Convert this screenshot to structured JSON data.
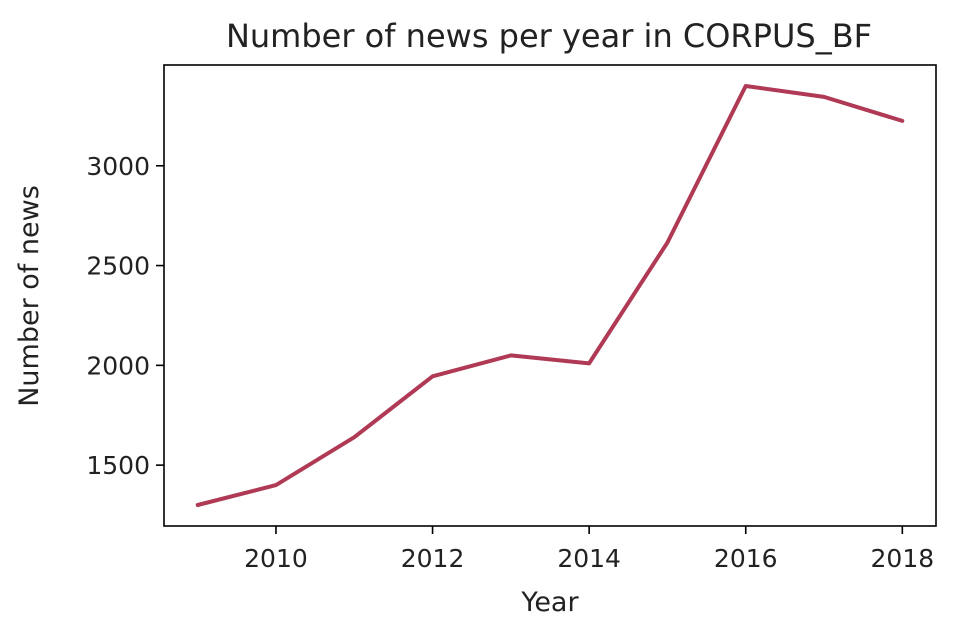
{
  "chart_data": {
    "type": "line",
    "title": "Number of news per year in CORPUS_BF",
    "xlabel": "Year",
    "ylabel": "Number of news",
    "x": [
      2009,
      2010,
      2011,
      2012,
      2013,
      2014,
      2015,
      2016,
      2017,
      2018
    ],
    "series": [
      {
        "values": [
          1300,
          1400,
          1640,
          1945,
          2050,
          2010,
          2615,
          3400,
          3345,
          3225
        ],
        "color": "#b03a55"
      }
    ],
    "xticks": [
      2010,
      2012,
      2014,
      2016,
      2018
    ],
    "yticks": [
      1500,
      2000,
      2500,
      3000
    ],
    "xlim": [
      2008.57,
      2018.43
    ],
    "ylim": [
      1195,
      3505
    ],
    "grid": false,
    "legend": "none"
  }
}
